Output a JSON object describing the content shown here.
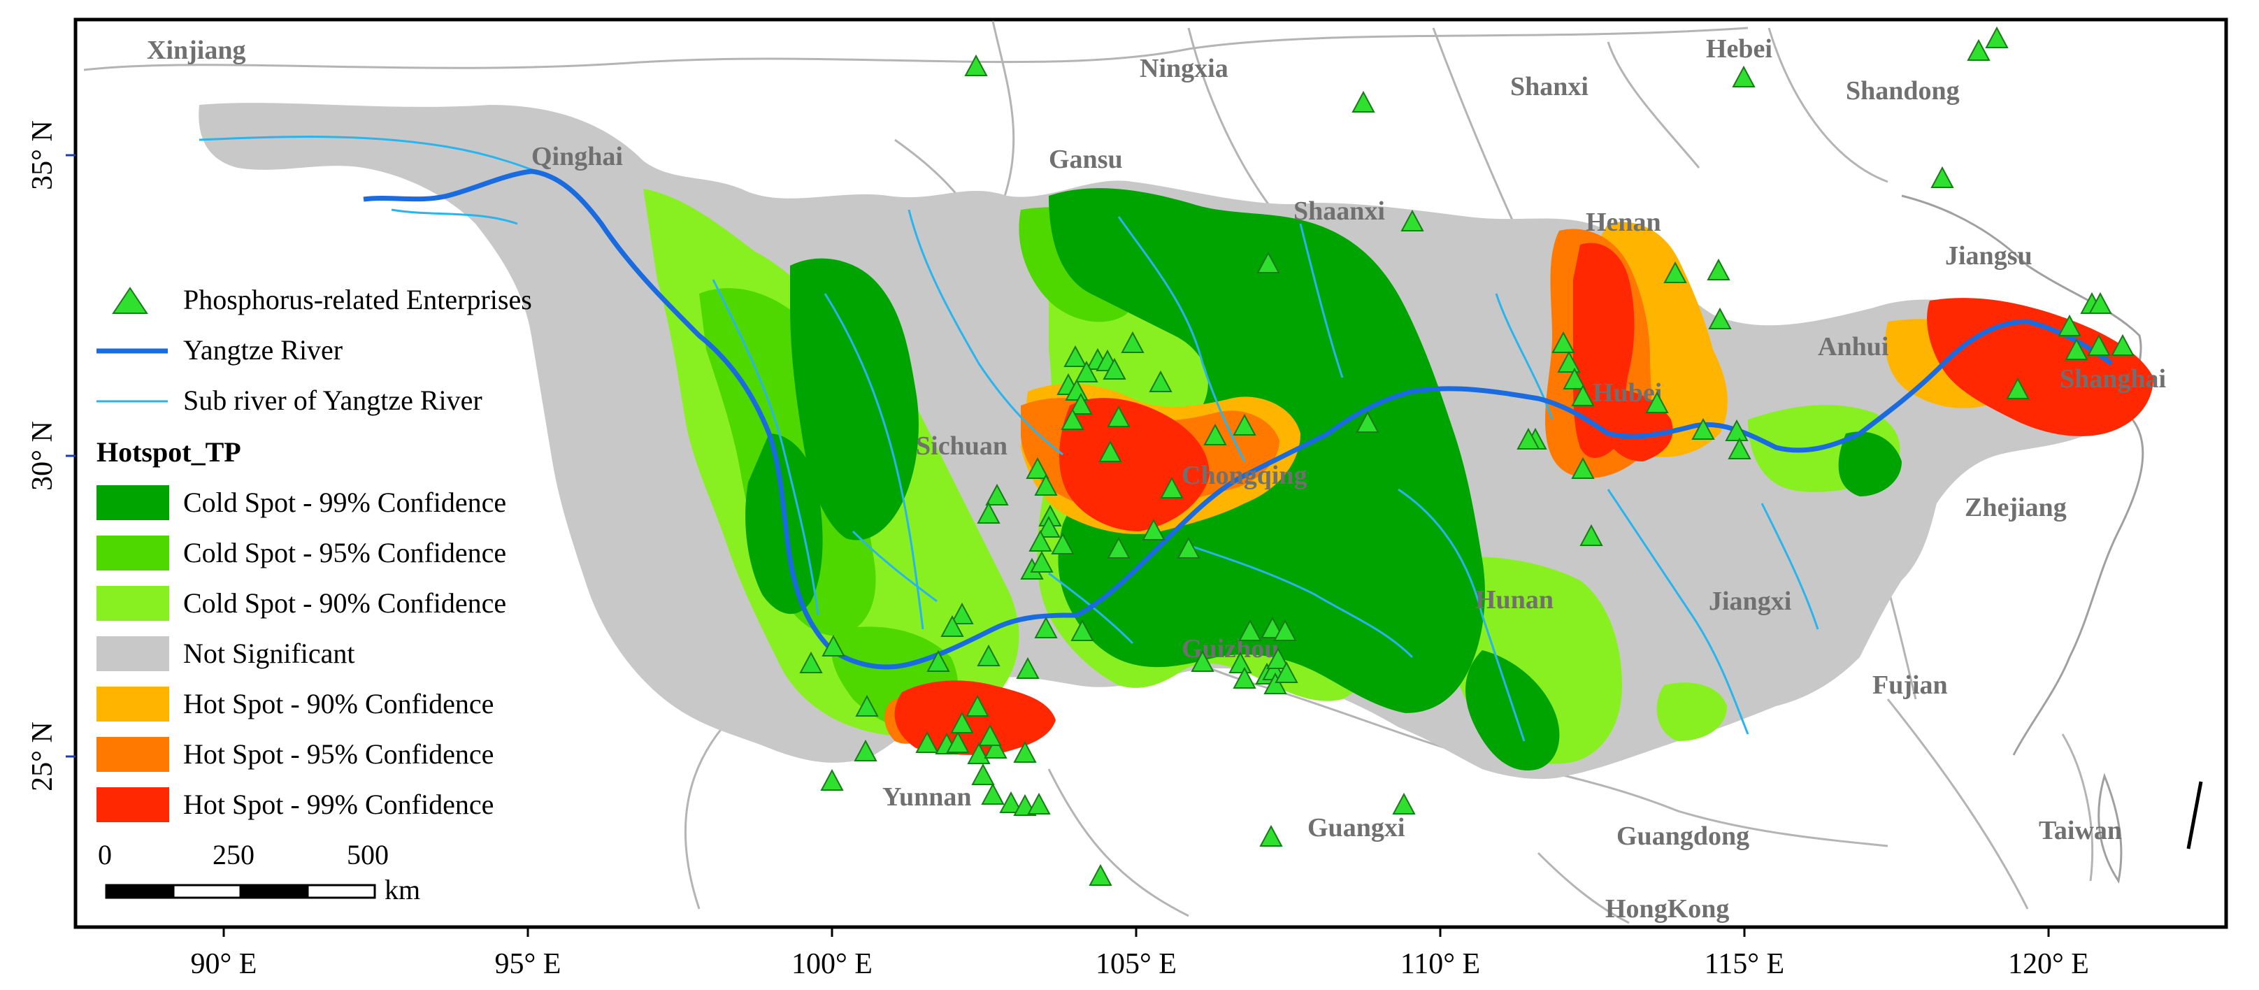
{
  "map": {
    "provinces": [
      "Xinjiang",
      "Ningxia",
      "Hebei",
      "Shanxi",
      "Shandong",
      "Qinghai",
      "Gansu",
      "Shaanxi",
      "Henan",
      "Jiangsu",
      "Anhui",
      "Shanghai",
      "Sichuan",
      "Chongqing",
      "Hubei",
      "Zhejiang",
      "Hunan",
      "Jiangxi",
      "Guizhou",
      "Fujian",
      "Yunnan",
      "Guangxi",
      "Guangdong",
      "Taiwan",
      "HongKong"
    ],
    "x_axis_ticks": [
      "90° E",
      "95° E",
      "100° E",
      "105° E",
      "110° E",
      "115° E",
      "120° E"
    ],
    "y_axis_ticks": [
      "35° N",
      "30° N",
      "25° N"
    ],
    "colors": {
      "cold99": "#00a400",
      "cold95": "#4fd800",
      "cold90": "#88f020",
      "not_significant": "#c8c8c8",
      "hot90": "#ffb400",
      "hot95": "#ff7800",
      "hot99": "#ff2800",
      "river_main": "#1a6be0",
      "river_sub": "#2ab4ee",
      "enterprise": "#2fe02f"
    }
  },
  "legend": {
    "enterprises": "Phosphorus-related Enterprises",
    "yangtze": "Yangtze River",
    "sub_river": "Sub river of Yangtze River",
    "title": "Hotspot_TP",
    "classes": [
      {
        "label": "Cold Spot - 99% Confidence",
        "color": "#00a400"
      },
      {
        "label": "Cold Spot - 95% Confidence",
        "color": "#4fd800"
      },
      {
        "label": "Cold Spot - 90% Confidence",
        "color": "#88f020"
      },
      {
        "label": "Not Significant",
        "color": "#c8c8c8"
      },
      {
        "label": "Hot Spot - 90% Confidence",
        "color": "#ffb400"
      },
      {
        "label": "Hot Spot - 95% Confidence",
        "color": "#ff7800"
      },
      {
        "label": "Hot Spot - 99% Confidence",
        "color": "#ff2800"
      }
    ]
  },
  "scale_bar": {
    "labels": [
      "0",
      "250",
      "500"
    ],
    "unit": "km"
  }
}
